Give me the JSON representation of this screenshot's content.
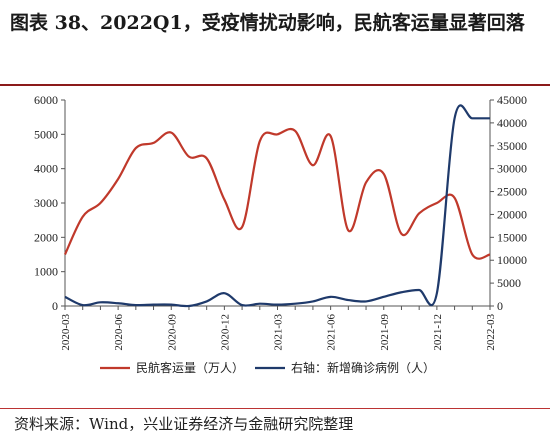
{
  "title": "图表 38、2022Q1，受疫情扰动影响，民航客运量显著回落",
  "source": "资料来源：Wind，兴业证券经济与金融研究院整理",
  "chart_data": {
    "type": "line",
    "x": [
      "2020-03",
      "2020-04",
      "2020-05",
      "2020-06",
      "2020-07",
      "2020-08",
      "2020-09",
      "2020-10",
      "2020-11",
      "2020-12",
      "2021-01",
      "2021-02",
      "2021-03",
      "2021-04",
      "2021-05",
      "2021-06",
      "2021-07",
      "2021-08",
      "2021-09",
      "2021-10",
      "2021-11",
      "2021-12",
      "2022-01",
      "2022-02",
      "2022-03"
    ],
    "xticks": [
      "2020-03",
      "2020-06",
      "2020-09",
      "2020-12",
      "2021-03",
      "2021-06",
      "2021-09",
      "2021-12",
      "2022-03"
    ],
    "series": [
      {
        "name": "民航客运量（万人）",
        "axis": "left",
        "color": "#c0392b",
        "values": [
          1500,
          2600,
          3000,
          3700,
          4600,
          4750,
          5050,
          4350,
          4300,
          3100,
          2300,
          4800,
          5000,
          5100,
          4100,
          4950,
          2200,
          3600,
          3850,
          2100,
          2700,
          3000,
          3150,
          1500,
          1500
        ]
      },
      {
        "name": "右轴：新增确诊病例（人）",
        "axis": "right",
        "color": "#1f3a6b",
        "values": [
          2000,
          200,
          800,
          600,
          200,
          300,
          300,
          0,
          1000,
          2800,
          200,
          500,
          300,
          500,
          1000,
          2000,
          1300,
          1000,
          2000,
          3000,
          3500,
          2800,
          41000,
          41000,
          41000
        ]
      }
    ],
    "yleft": {
      "ticks": [
        0,
        1000,
        2000,
        3000,
        4000,
        5000,
        6000
      ],
      "range": [
        0,
        6000
      ]
    },
    "yright": {
      "ticks": [
        0,
        5000,
        10000,
        15000,
        20000,
        25000,
        30000,
        35000,
        40000,
        45000
      ],
      "range": [
        0,
        45000
      ]
    },
    "legend_position": "bottom"
  }
}
